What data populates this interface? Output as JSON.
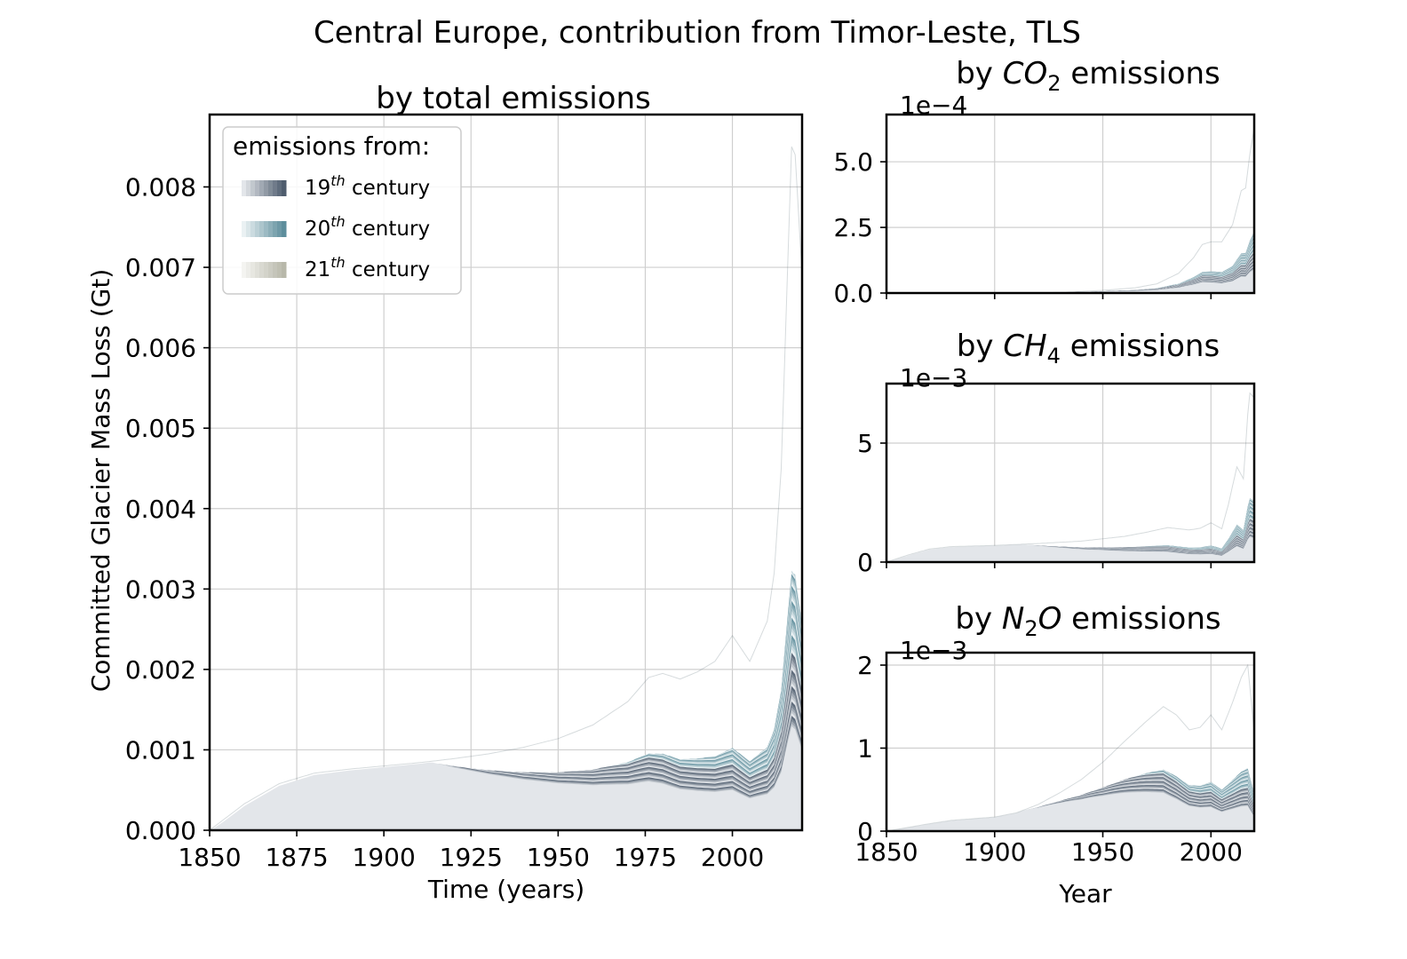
{
  "suptitle": "Central Europe, contribution from Timor-Leste, TLS",
  "colors": {
    "c19_dark": "#4f5d6e",
    "c19_light": "#e3e6ea",
    "c20_dark": "#5e8e9c",
    "c20_light": "#eaf1f3",
    "c21_dark": "#b8b8aa",
    "c21_light": "#f4f4f1",
    "grid": "#cfcfcf"
  },
  "chart_data": [
    {
      "id": "total",
      "type": "area",
      "title": "by total emissions",
      "xlabel": "Time (years)",
      "ylabel": "Committed Glacier Mass Loss (Gt)",
      "xlim": [
        1850,
        2020
      ],
      "ylim": [
        0,
        0.0089
      ],
      "xticks": [
        1850,
        1875,
        1900,
        1925,
        1950,
        1975,
        2000
      ],
      "xtick_labels": [
        "1850",
        "1875",
        "1900",
        "1925",
        "1950",
        "1975",
        "2000"
      ],
      "yticks": [
        0,
        0.001,
        0.002,
        0.003,
        0.004,
        0.005,
        0.006,
        0.007,
        0.008
      ],
      "ytick_labels": [
        "0.000",
        "0.001",
        "0.002",
        "0.003",
        "0.004",
        "0.005",
        "0.006",
        "0.007",
        "0.008"
      ],
      "grid": true,
      "legend": {
        "title": "emissions from:",
        "placement": "top-left",
        "entries": [
          {
            "base": "19",
            "sup": "th",
            "rest": " century"
          },
          {
            "base": "20",
            "sup": "th",
            "rest": " century"
          },
          {
            "base": "21",
            "sup": "th",
            "rest": " century"
          }
        ]
      },
      "envelope": {
        "x": [
          1850,
          1860,
          1870,
          1880,
          1890,
          1900,
          1910,
          1920,
          1930,
          1940,
          1950,
          1960,
          1970,
          1976,
          1980,
          1985,
          1990,
          1995,
          2000,
          2005,
          2010,
          2012,
          2014,
          2016,
          2017,
          2018,
          2020
        ],
        "y": [
          0,
          0.00033,
          0.00058,
          0.00071,
          0.00076,
          0.0008,
          0.00084,
          0.00089,
          0.00095,
          0.00103,
          0.00114,
          0.00131,
          0.0016,
          0.0019,
          0.00195,
          0.00188,
          0.00197,
          0.0021,
          0.00242,
          0.0021,
          0.0026,
          0.0032,
          0.0045,
          0.0072,
          0.0085,
          0.0084,
          0.0069
        ]
      }
    },
    {
      "id": "co2",
      "type": "area",
      "title_pre": "by ",
      "title_gas": "CO",
      "title_sub": "2",
      "title_post": " emissions",
      "offset_label": "1e−4",
      "xlim": [
        1850,
        2020
      ],
      "ylim": [
        0,
        6.8
      ],
      "xticks": [
        1850,
        1900,
        1950,
        2000
      ],
      "yticks": [
        0,
        2.5,
        5.0
      ],
      "ytick_labels": [
        "0.0",
        "2.5",
        "5.0"
      ],
      "grid": true,
      "envelope": {
        "x": [
          1850,
          1900,
          1930,
          1950,
          1965,
          1975,
          1985,
          1992,
          1996,
          2000,
          2005,
          2010,
          2014,
          2016,
          2018,
          2020
        ],
        "y": [
          0,
          0,
          0.02,
          0.1,
          0.2,
          0.35,
          0.75,
          1.35,
          1.85,
          1.95,
          1.95,
          2.6,
          3.9,
          4.0,
          5.3,
          6.3
        ]
      }
    },
    {
      "id": "ch4",
      "type": "area",
      "title_pre": "by ",
      "title_gas": "CH",
      "title_sub": "4",
      "title_post": " emissions",
      "offset_label": "1e−3",
      "xlim": [
        1850,
        2020
      ],
      "ylim": [
        0,
        7.5
      ],
      "xticks": [
        1850,
        1900,
        1950,
        2000
      ],
      "yticks": [
        0,
        5
      ],
      "ytick_labels": [
        "0",
        "5"
      ],
      "grid": true,
      "envelope": {
        "x": [
          1850,
          1860,
          1870,
          1880,
          1900,
          1920,
          1940,
          1960,
          1970,
          1980,
          1990,
          1995,
          2000,
          2005,
          2008,
          2012,
          2015,
          2017,
          2018,
          2020
        ],
        "y": [
          0,
          0.3,
          0.55,
          0.65,
          0.7,
          0.78,
          0.88,
          1.08,
          1.25,
          1.45,
          1.35,
          1.42,
          1.65,
          1.4,
          2.4,
          4.0,
          3.5,
          6.2,
          7.1,
          6.9
        ]
      }
    },
    {
      "id": "n2o",
      "type": "area",
      "title_pre": "by ",
      "title_gas": "N",
      "title_sub": "2",
      "title_gas2": "O",
      "title_post": " emissions",
      "offset_label": "1e−3",
      "xlabel": "Year",
      "xlim": [
        1850,
        2020
      ],
      "ylim": [
        0,
        2.15
      ],
      "xticks": [
        1850,
        1900,
        1950,
        2000
      ],
      "xtick_labels": [
        "1850",
        "1900",
        "1950",
        "2000"
      ],
      "yticks": [
        0,
        1,
        2
      ],
      "ytick_labels": [
        "0",
        "1",
        "2"
      ],
      "grid": true,
      "envelope": {
        "x": [
          1850,
          1870,
          1880,
          1900,
          1910,
          1920,
          1930,
          1940,
          1950,
          1960,
          1970,
          1978,
          1984,
          1990,
          1995,
          2000,
          2005,
          2010,
          2014,
          2017,
          2020
        ],
        "y": [
          0,
          0.09,
          0.13,
          0.17,
          0.22,
          0.32,
          0.46,
          0.62,
          0.83,
          1.08,
          1.32,
          1.5,
          1.4,
          1.22,
          1.25,
          1.4,
          1.22,
          1.55,
          1.85,
          2.0,
          1.2
        ]
      }
    }
  ]
}
